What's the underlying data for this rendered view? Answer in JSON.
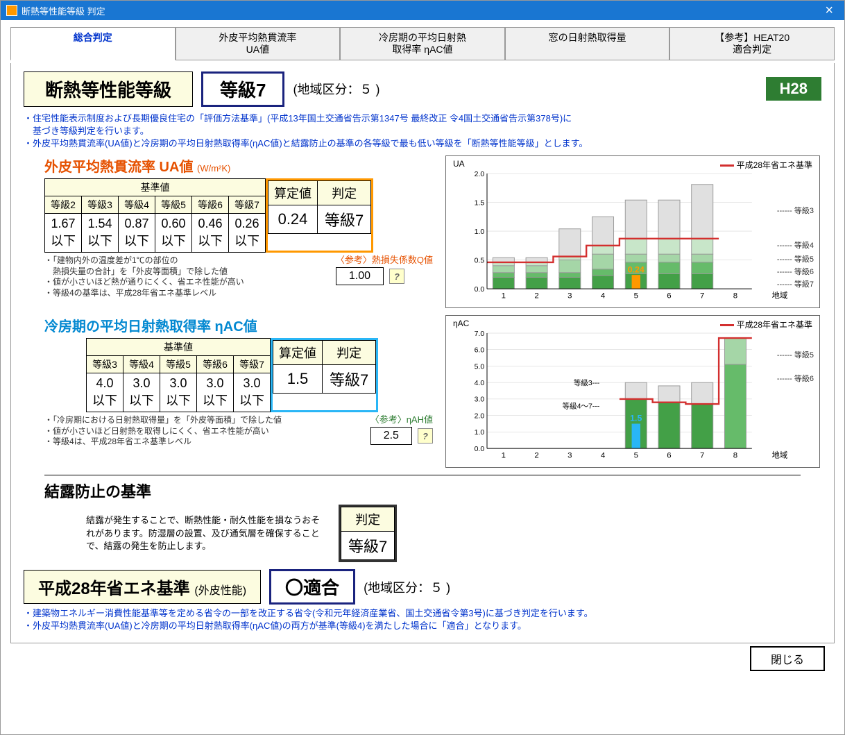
{
  "window": {
    "title": "断熱等性能等級 判定"
  },
  "tabs": [
    "総合判定",
    "外皮平均熱貫流率\nUA値",
    "冷房期の平均日射熱\n取得率 ηAC値",
    "窓の日射熱取得量",
    "【参考】HEAT20\n適合判定"
  ],
  "header": {
    "title": "断熱等性能等級",
    "grade": "等級7",
    "region_label": "(地域区分：",
    "region_value": "５",
    "region_close": " )",
    "badge": "H28"
  },
  "note1": "・住宅性能表示制度および長期優良住宅の「評価方法基準」(平成13年国土交通省告示第1347号 最終改正 令4国土交通省告示第378号)に\n　基づき等級判定を行います。\n・外皮平均熱貫流率(UA値)と冷房期の平均日射熱取得率(ηAC値)と結露防止の基準の各等級で最も低い等級を「断熱等性能等級」とします。",
  "ua": {
    "title": "外皮平均熱貫流率 UA値",
    "unit": "(W/m²K)",
    "std_header": "基準値",
    "cols": [
      "等級2",
      "等級3",
      "等級4",
      "等級5",
      "等級6",
      "等級7"
    ],
    "vals": [
      "1.67\n以下",
      "1.54\n以下",
      "0.87\n以下",
      "0.60\n以下",
      "0.46\n以下",
      "0.26\n以下"
    ],
    "calc_header": "算定値",
    "judge_header": "判定",
    "calc": "0.24",
    "judge": "等級7",
    "notes": "・「建物内外の温度差が1℃の部位の\n　熱損失量の合計」を「外皮等面積」で除した値\n・値が小さいほど熱が通りにくく、省エネ性能が高い\n・等級4の基準は、平成28年省エネ基準レベル",
    "ref_label": "〈参考〉熱損失係数Q値",
    "ref_val": "1.00"
  },
  "ua_chart": {
    "ylabel": "UA",
    "legend": "平成28年省エネ基準",
    "ylim": [
      0,
      2.0
    ],
    "yticks": [
      0.0,
      0.5,
      1.0,
      1.5,
      2.0
    ],
    "xticks": [
      "1",
      "2",
      "3",
      "4",
      "5",
      "6",
      "7",
      "8"
    ],
    "xlabel": "地域",
    "grade3": [
      0.54,
      0.54,
      1.04,
      1.25,
      1.54,
      1.54,
      1.81,
      null
    ],
    "grade4": [
      0.46,
      0.46,
      0.56,
      0.75,
      0.87,
      0.87,
      0.87,
      null
    ],
    "grade5": [
      0.4,
      0.4,
      0.5,
      0.6,
      0.6,
      0.6,
      0.6,
      null
    ],
    "grade6": [
      0.28,
      0.28,
      0.28,
      0.34,
      0.46,
      0.46,
      0.46,
      null
    ],
    "grade7": [
      0.2,
      0.2,
      0.2,
      0.23,
      0.26,
      0.26,
      0.26,
      null
    ],
    "redline": [
      0.46,
      0.46,
      0.56,
      0.75,
      0.87,
      0.87,
      0.87,
      null
    ],
    "highlight_region": 5,
    "highlight_value": 0.24,
    "highlight_label": "0.24",
    "colors": {
      "g3": "#e0e0e0",
      "g4": "#c8e6c9",
      "g5": "#a5d6a7",
      "g6": "#66bb6a",
      "g7": "#43a047",
      "hl": "#ff9800",
      "red": "#d32f2f"
    },
    "annot": [
      "等級3",
      "等級4",
      "等級5",
      "等級6",
      "等級7"
    ]
  },
  "eta": {
    "title": "冷房期の平均日射熱取得率  ηAC値",
    "std_header": "基準値",
    "cols": [
      "等級3",
      "等級4",
      "等級5",
      "等級6",
      "等級7"
    ],
    "vals": [
      "4.0\n以下",
      "3.0\n以下",
      "3.0\n以下",
      "3.0\n以下",
      "3.0\n以下"
    ],
    "calc_header": "算定値",
    "judge_header": "判定",
    "calc": "1.5",
    "judge": "等級7",
    "notes": "・「冷房期における日射熱取得量」を「外皮等面積」で除した値\n・値が小さいほど日射熱を取得しにくく、省エネ性能が高い\n・等級4は、平成28年省エネ基準レベル",
    "ref_label": "〈参考〉ηAH値",
    "ref_val": "2.5"
  },
  "eta_chart": {
    "ylabel": "ηAC",
    "legend": "平成28年省エネ基準",
    "ylim": [
      0,
      7.0
    ],
    "yticks": [
      0.0,
      1.0,
      2.0,
      3.0,
      4.0,
      5.0,
      6.0,
      7.0
    ],
    "xticks": [
      "1",
      "2",
      "3",
      "4",
      "5",
      "6",
      "7",
      "8"
    ],
    "xlabel": "地域",
    "grade3": [
      null,
      null,
      null,
      null,
      4.0,
      3.8,
      4.0,
      null
    ],
    "grade47": [
      null,
      null,
      null,
      null,
      3.0,
      2.8,
      2.7,
      6.7
    ],
    "grade5_8": 6.7,
    "grade6_8": 5.1,
    "redline": [
      null,
      null,
      null,
      null,
      3.0,
      2.8,
      2.7,
      6.7
    ],
    "highlight_region": 5,
    "highlight_value": 1.5,
    "highlight_label": "1.5",
    "colors": {
      "g3": "#e0e0e0",
      "g47": "#43a047",
      "g5": "#a5d6a7",
      "g6": "#66bb6a",
      "hl": "#29b6f6",
      "red": "#d32f2f"
    },
    "annot3": "等級3---",
    "annot47": "等級4～7---",
    "annot5": "等級5",
    "annot6": "等級6"
  },
  "ketsuro": {
    "title": "結露防止の基準",
    "text": "結露が発生することで、断熱性能・耐久性能を損なうおそれがあります。防湿層の設置、及び通気層を確保することで、結露の発生を防止します。",
    "judge_header": "判定",
    "judge": "等級7"
  },
  "h28": {
    "title": "平成28年省エネ基準",
    "sub": "(外皮性能)",
    "result": "〇適合",
    "region_label": "(地域区分：",
    "region_value": "５",
    "region_close": " )"
  },
  "note2": "・建築物エネルギー消費性能基準等を定める省令の一部を改正する省令(令和元年経済産業省、国土交通省令第3号)に基づき判定を行います。\n・外皮平均熱貫流率(UA値)と冷房期の平均日射熱取得率(ηAC値)の両方が基準(等級4)を満たした場合に「適合」となります。",
  "footer": {
    "close": "閉じる"
  }
}
